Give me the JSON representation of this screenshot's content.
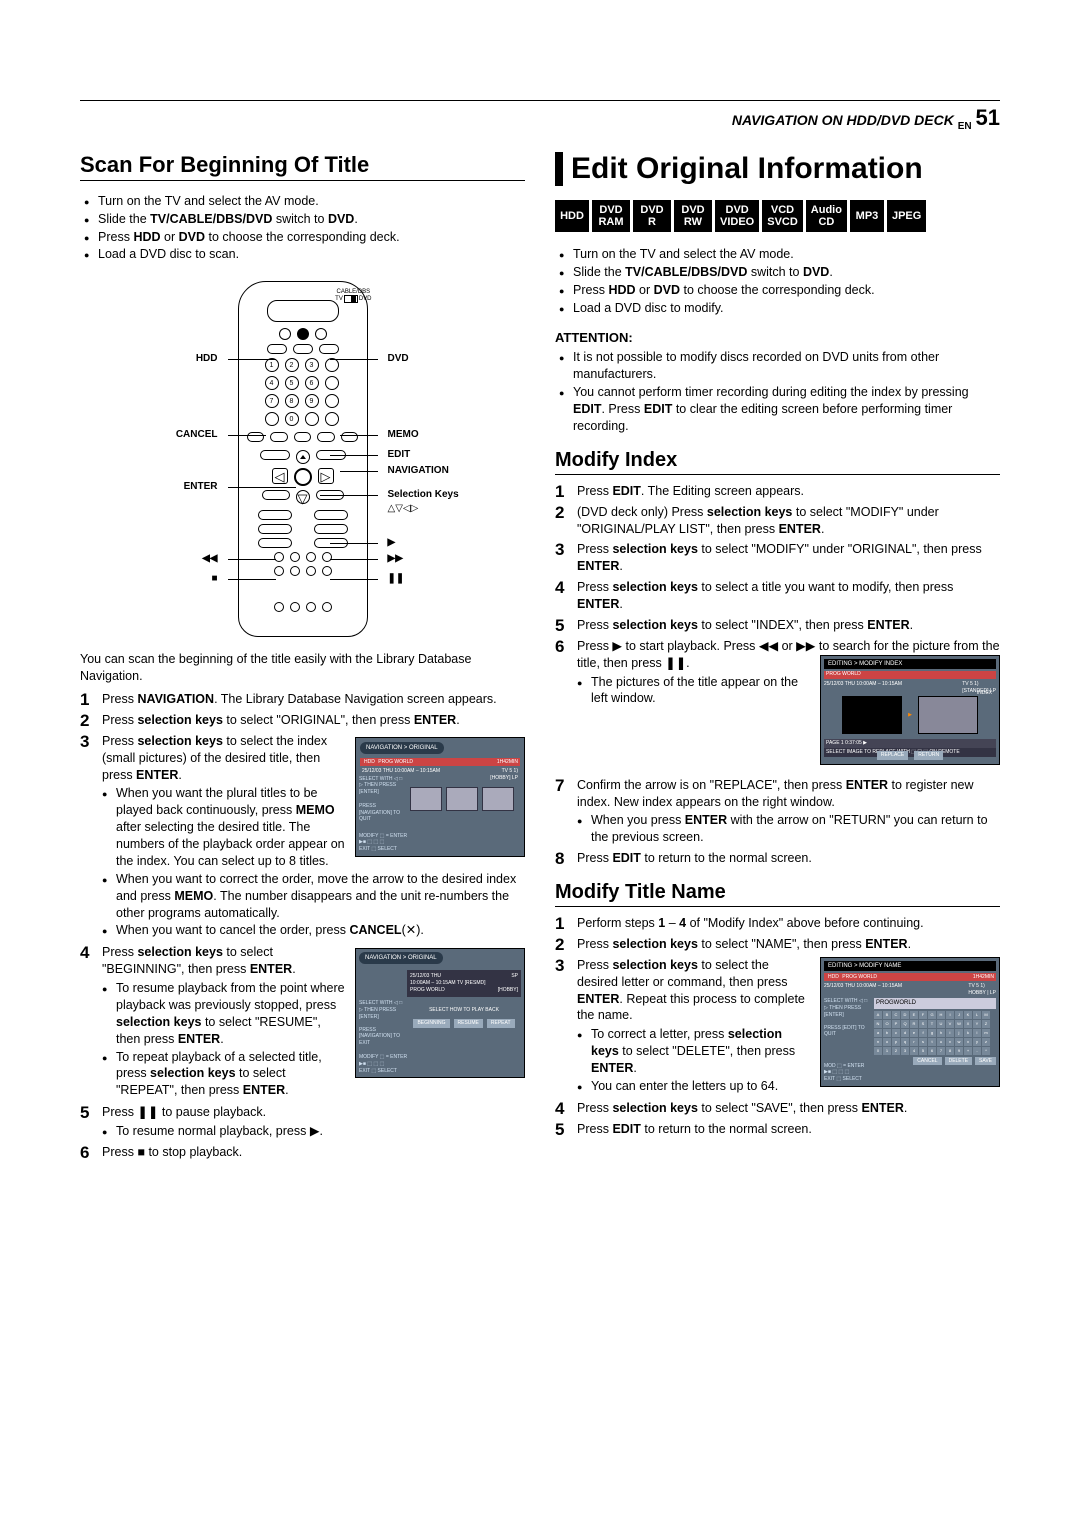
{
  "header": {
    "nav_text": "NAVIGATION ON HDD/DVD DECK",
    "en": "EN",
    "page": "51"
  },
  "left": {
    "title": "Scan For Beginning Of Title",
    "setup": [
      "Turn on the TV and select the AV mode.",
      "Slide the <b>TV/CABLE/DBS/DVD</b> switch to <b>DVD</b>.",
      "Press <b>HDD</b> or <b>DVD</b> to choose the corresponding deck.",
      "Load a DVD disc to scan."
    ],
    "remote_labels": {
      "hdd": "HDD",
      "dvd": "DVD",
      "memo": "MEMO",
      "cancel": "CANCEL",
      "edit": "EDIT",
      "navigation": "NAVIGATION",
      "enter": "ENTER",
      "selection": "Selection Keys",
      "sel_syms": "△▽◁▷",
      "cable": "CABLE/DBS",
      "tv": "TV",
      "dvd2": "DVD"
    },
    "scan_text": "You can scan the beginning of the title easily with the Library Database Navigation.",
    "steps": [
      "Press <b>NAVIGATION</b>. The Library Database Navigation screen appears.",
      "Press <b>selection keys</b> to select \"ORIGINAL\", then press <b>ENTER</b>.",
      "Press <b>selection keys</b> to select the index (small pictures) of the desired title, then press <b>ENTER</b>.",
      "Press <b>selection keys</b> to select \"BEGINNING\", then press <b>ENTER</b>.",
      "Press ❚❚ to pause playback.",
      "Press ■ to stop playback."
    ],
    "step3_subs": [
      "When you want the plural titles to be played back continuously, press <b>MEMO</b> after selecting the desired title. The numbers of the playback order appear on the index. You can select up to 8 titles.",
      "When you want to correct the order, move the arrow to the desired index and press <b>MEMO</b>. The number disappears and the unit re-numbers the other programs automatically.",
      "When you want to cancel the order, press <b>CANCEL</b>(✕)."
    ],
    "step4_subs": [
      "To resume playback from the point where playback was previously stopped, press <b>selection keys</b> to select \"RESUME\", then press <b>ENTER</b>.",
      "To repeat playback of a selected title, press <b>selection keys</b> to select \"REPEAT\", then press <b>ENTER</b>."
    ],
    "step5_subs": [
      "To resume normal playback, press ▶."
    ],
    "screen1": {
      "title": "NAVIGATION > ORIGINAL",
      "hdd": "HDD",
      "prog": "PROG WORLD",
      "date": "25/12/03 THU 10:00AM – 10:15AM",
      "dur": "1H42MIN",
      "tv": "TV  5  1)",
      "hobby": "[HOBBY]  LP",
      "side1": "SELECT WITH ◁ □ ▷ THEN PRESS [ENTER]",
      "side2": "PRESS [NAVIGATION] TO QUIT",
      "footer": "MODIFY ⬚ = ENTER\n▶■ ⬚ ⬚ ⬚\nEXIT ⬚   SELECT"
    },
    "screen2": {
      "title": "NAVIGATION > ORIGINAL",
      "date": "25/12/03 THU\n10:00AM – 10:15AM  TV  [RESMD]",
      "prog": "PROG WORLD",
      "hobby": "[HOBBY]",
      "sp": "SP",
      "side1": "SELECT WITH ◁ □ ▷ THEN PRESS [ENTER]",
      "side2": "PRESS [NAVIGATION] TO EXIT",
      "label": "SELECT HOW TO PLAY BACK",
      "b1": "BEGINNING",
      "b2": "RESUME",
      "b3": "REPEAT",
      "footer": "MODIFY ⬚ = ENTER\n▶■ ⬚ ⬚ ⬚\nEXIT ⬚   SELECT"
    }
  },
  "right": {
    "big_title": "Edit Original Information",
    "badges": [
      [
        "HDD"
      ],
      [
        "DVD",
        "RAM"
      ],
      [
        "DVD",
        "R"
      ],
      [
        "DVD",
        "RW"
      ],
      [
        "DVD",
        "VIDEO"
      ],
      [
        "VCD",
        "SVCD"
      ],
      [
        "Audio",
        "CD"
      ],
      [
        "MP3"
      ],
      [
        "JPEG"
      ]
    ],
    "setup": [
      "Turn on the TV and select the AV mode.",
      "Slide the <b>TV/CABLE/DBS/DVD</b> switch to <b>DVD</b>.",
      "Press <b>HDD</b> or <b>DVD</b> to choose the corresponding deck.",
      "Load a DVD disc to modify."
    ],
    "attention_label": "ATTENTION:",
    "attention": [
      "It is not possible to modify discs recorded on DVD units from other manufacturers.",
      "You cannot perform timer recording during editing the index by pressing <b>EDIT</b>. Press <b>EDIT</b> to clear the editing screen before performing timer recording."
    ],
    "modify_index_title": "Modify Index",
    "modify_index_steps": [
      "Press <b>EDIT</b>. The Editing screen appears.",
      "(DVD deck only) Press <b>selection keys</b> to select \"MODIFY\" under \"ORIGINAL/PLAY LIST\", then press <b>ENTER</b>.",
      "Press <b>selection keys</b> to select \"MODIFY\" under \"ORIGINAL\", then press <b>ENTER</b>.",
      "Press <b>selection keys</b> to select a title you want to modify, then press <b>ENTER</b>.",
      "Press <b>selection keys</b> to select \"INDEX\", then press <b>ENTER</b>.",
      "Press ▶ to start playback. Press ◀◀ or ▶▶ to search for the picture from the title, then press ❚❚.",
      "Confirm the arrow is on \"REPLACE\", then press <b>ENTER</b> to register new index. New index appears on the right window.",
      "Press <b>EDIT</b> to return to the normal screen."
    ],
    "mi_step6_sub": "The pictures of the title appear on the left window.",
    "mi_step7_sub": "When you press <b>ENTER</b> with the arrow on \"RETURN\" you can return to the previous screen.",
    "screen3": {
      "title": "EDITING > MODIFY INDEX",
      "date": "25/12/03 THU 10:00AM – 10:15AM",
      "prog": "PROG WORLD",
      "tv": "TV  5  1)",
      "std": "[STANDED]  LP",
      "index": "INDEX",
      "page": "PAGE 1    0:37:05  ▶",
      "select": "SELECT IMAGE TO REPLACE WITH ⬚ ☐ ⬚ ON REMOTE",
      "b1": "REPLACE",
      "b2": "RETURN"
    },
    "modify_title_name": "Modify Title Name",
    "mtn_steps": [
      "Perform steps <b>1</b> – <b>4</b> of \"Modify Index\" above before continuing.",
      "Press <b>selection keys</b> to select \"NAME\", then press <b>ENTER</b>.",
      "Press <b>selection keys</b> to select the desired letter or command, then press <b>ENTER</b>. Repeat this process to complete the name.",
      "Press <b>selection keys</b> to select \"SAVE\", then press <b>ENTER</b>.",
      "Press <b>EDIT</b> to return to the normal screen."
    ],
    "mtn_step3_subs": [
      "To correct a letter, press <b>selection keys</b> to select \"DELETE\", then press <b>ENTER</b>.",
      "You can enter the letters up to 64."
    ],
    "screen4": {
      "title": "EDITING > MODIFY NAME",
      "hdd": "HDD",
      "prog_top": "PROG WORLD",
      "date": "25/12/03 THU 10:00AM – 10:15AM",
      "dur": "1H42MIN",
      "tv": "TV  5  1)",
      "hobby": "HOBBY | LP",
      "prog": "PROGWORLD",
      "side1": "SELECT WITH ◁ □ ▷ THEN PRESS [ENTER]",
      "side2": "PRESS [EDIT] TO QUIT",
      "footer": "MOD ⬚ = ENTER\n▶■ ⬚ ⬚ ⬚\nEXIT ⬚   SELECT",
      "b1": "CANCEL",
      "b2": "DELETE",
      "b3": "SAVE"
    }
  }
}
